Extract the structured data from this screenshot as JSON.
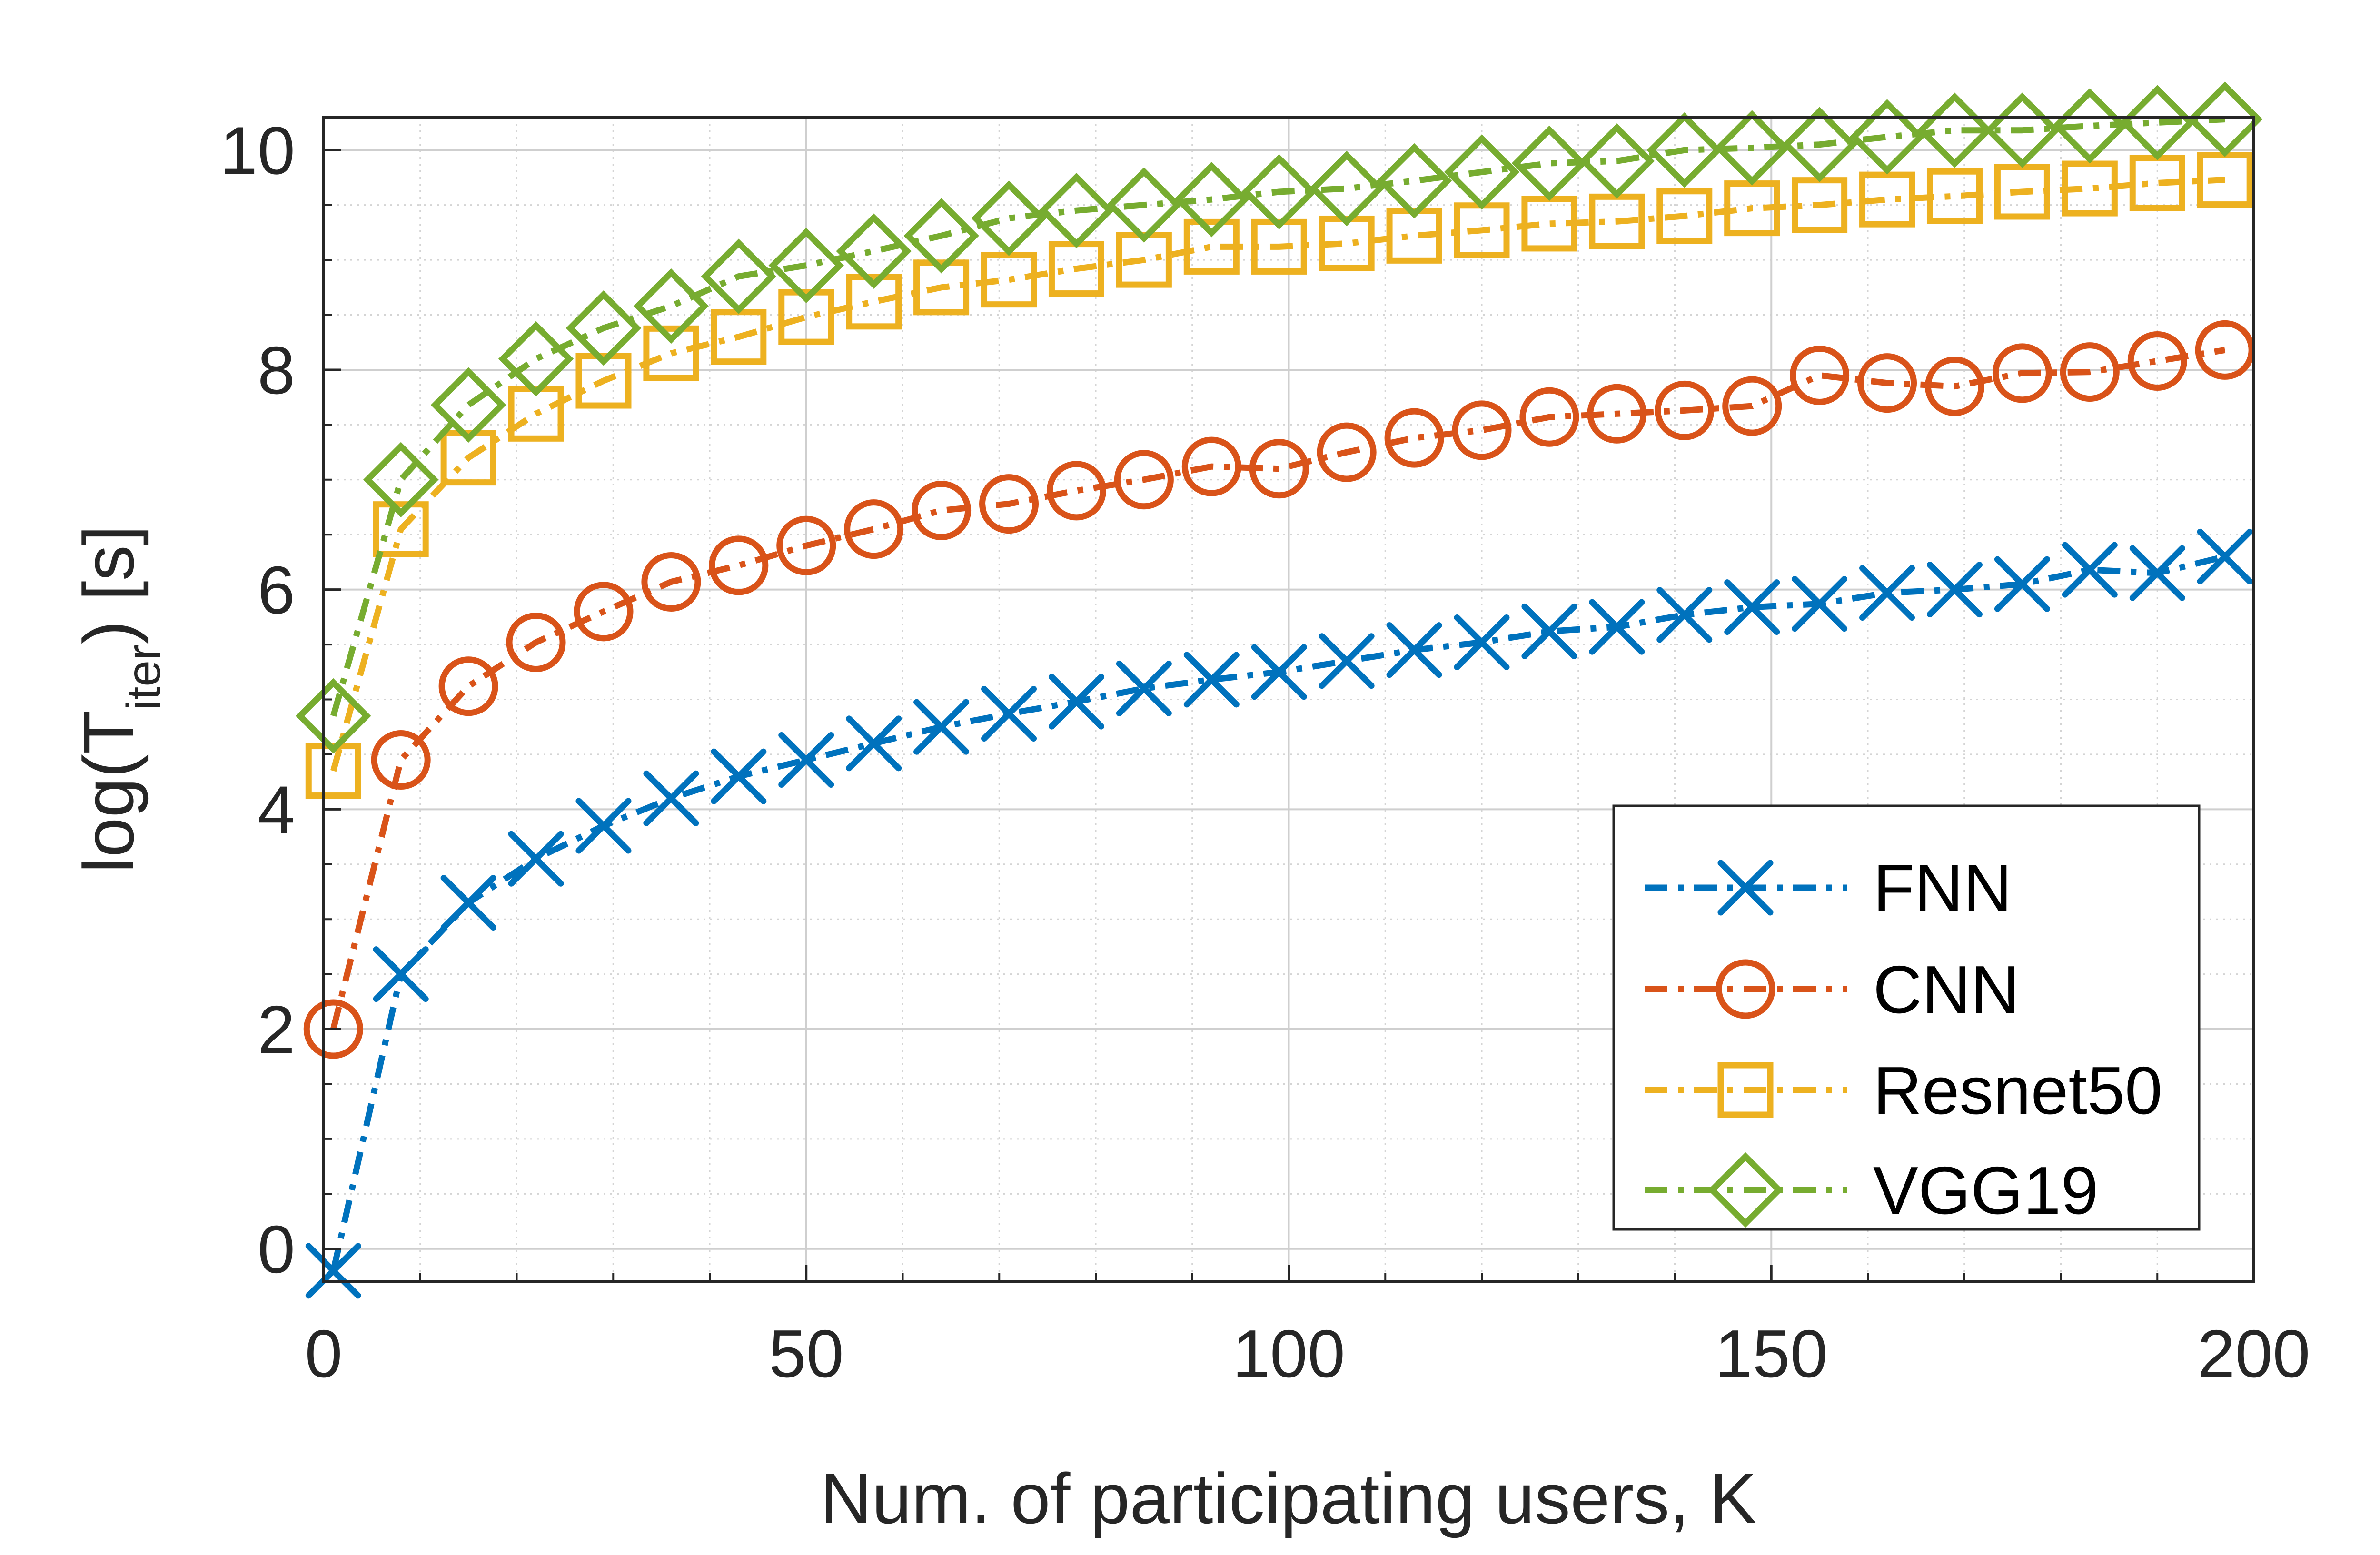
{
  "chart_data": {
    "type": "line",
    "title": "",
    "xlabel": "Num. of participating users, K",
    "ylabel": {
      "main": "log(T",
      "subscript": "iter",
      "suffix": ") [s]"
    },
    "xlim": [
      0,
      200
    ],
    "ylim": [
      -0.3,
      10.3
    ],
    "xticks": [
      0,
      50,
      100,
      150,
      200
    ],
    "yticks": [
      0,
      2,
      4,
      6,
      8,
      10
    ],
    "x_minor_step": 10,
    "y_minor_step": 0.5,
    "grid": true,
    "legend_position": "lower-right",
    "x": [
      1,
      8,
      15,
      22,
      29,
      36,
      43,
      50,
      57,
      64,
      71,
      78,
      85,
      92,
      99,
      106,
      113,
      120,
      127,
      134,
      141,
      148,
      155,
      162,
      169,
      176,
      183,
      190,
      197
    ],
    "series": [
      {
        "name": "FNN",
        "color": "#0072BD",
        "marker": "x",
        "values": [
          -0.2,
          2.5,
          3.15,
          3.55,
          3.85,
          4.1,
          4.3,
          4.45,
          4.6,
          4.75,
          4.87,
          4.98,
          5.1,
          5.18,
          5.25,
          5.35,
          5.45,
          5.52,
          5.62,
          5.66,
          5.77,
          5.84,
          5.87,
          5.97,
          6.0,
          6.05,
          6.18,
          6.15,
          6.3
        ]
      },
      {
        "name": "CNN",
        "color": "#D95319",
        "marker": "circle",
        "values": [
          2.0,
          4.45,
          5.12,
          5.52,
          5.8,
          6.07,
          6.22,
          6.4,
          6.55,
          6.72,
          6.78,
          6.9,
          7.0,
          7.12,
          7.1,
          7.25,
          7.38,
          7.45,
          7.57,
          7.6,
          7.63,
          7.67,
          7.95,
          7.88,
          7.85,
          7.97,
          7.98,
          8.08,
          8.18
        ]
      },
      {
        "name": "Resnet50",
        "color": "#EDB120",
        "marker": "square",
        "values": [
          4.35,
          6.55,
          7.2,
          7.6,
          7.9,
          8.15,
          8.3,
          8.48,
          8.62,
          8.75,
          8.82,
          8.92,
          9.0,
          9.12,
          9.12,
          9.15,
          9.22,
          9.27,
          9.33,
          9.35,
          9.4,
          9.47,
          9.5,
          9.55,
          9.58,
          9.62,
          9.65,
          9.7,
          9.73
        ]
      },
      {
        "name": "VGG19",
        "color": "#77AC30",
        "marker": "diamond",
        "values": [
          4.85,
          7.0,
          7.68,
          8.1,
          8.38,
          8.58,
          8.85,
          8.95,
          9.08,
          9.22,
          9.38,
          9.45,
          9.5,
          9.55,
          9.62,
          9.65,
          9.72,
          9.8,
          9.88,
          9.9,
          10.0,
          10.02,
          10.05,
          10.12,
          10.18,
          10.18,
          10.22,
          10.25,
          10.28
        ]
      }
    ]
  }
}
